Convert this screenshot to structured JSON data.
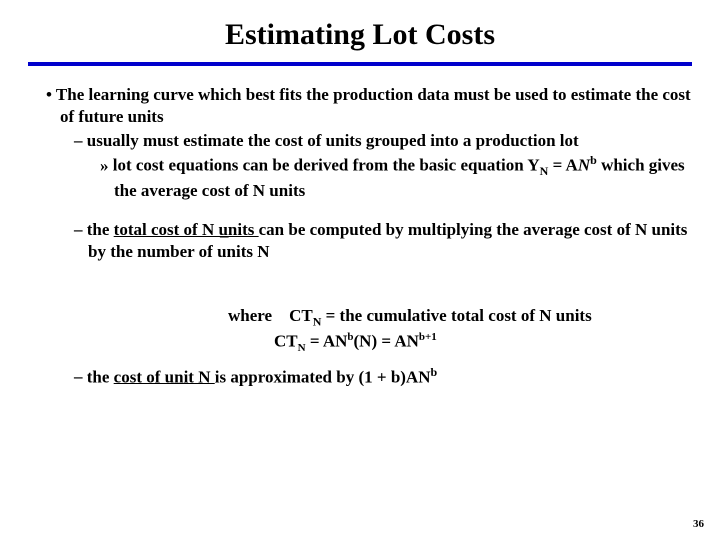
{
  "title": "Estimating Lot Costs",
  "colors": {
    "rule": "#0000cc",
    "text": "#000000",
    "background": "#ffffff"
  },
  "typography": {
    "title_fontsize": 30,
    "body_fontsize": 17,
    "body_weight": "bold",
    "family": "Times New Roman"
  },
  "bullets": {
    "b1": "The learning curve which best fits the production data must be used to estimate the cost of future units",
    "b1_1": "usually must estimate the cost of units grouped into a production lot",
    "b1_1_1_a": "lot cost equations can be derived from the basic equation Y",
    "b1_1_1_sub1": "N",
    "b1_1_1_b": " = A",
    "b1_1_1_c": "N",
    "b1_1_1_sup": "b",
    "b1_1_1_d": " which gives the average cost of N units",
    "b1_2_a": "the ",
    "b1_2_u": "total cost of N units ",
    "b1_2_b": "can be computed by multiplying the average cost of N units by the number of units N",
    "where_label": "where",
    "where_ct": "CT",
    "where_sub": "N",
    "where_rest": " = the cumulative total cost of N units",
    "formula_a": "CT",
    "formula_sub1": "N",
    "formula_b": " = AN",
    "formula_sup1": "b",
    "formula_c": "(N) = AN",
    "formula_sup2": "b+1",
    "b1_3_a": "the ",
    "b1_3_u": "cost of unit N ",
    "b1_3_b": "is approximated by (1 + b)AN",
    "b1_3_sup": "b"
  },
  "stray": "–",
  "page_number": "36"
}
